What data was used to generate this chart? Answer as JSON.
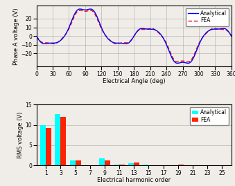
{
  "top": {
    "ylabel": "Phase A voltage (V)",
    "xlabel": "Electrical Angle (deg)",
    "ylim": [
      -35,
      35
    ],
    "xlim": [
      0,
      360
    ],
    "xticks": [
      0,
      30,
      60,
      90,
      120,
      150,
      180,
      210,
      240,
      270,
      300,
      330,
      360
    ],
    "yticks": [
      -20,
      -10,
      0,
      10,
      20
    ],
    "analytical_color": "#0000ff",
    "fea_color": "#ff0000",
    "legend_labels": [
      "Analytical",
      "FEA"
    ],
    "bg_color": "#f0ede8"
  },
  "bottom": {
    "ylabel": "RMS voltage (V)",
    "xlabel": "Electrical harmonic order",
    "ylim": [
      0,
      15
    ],
    "yticks": [
      0,
      5,
      10,
      15
    ],
    "xticks": [
      1,
      3,
      5,
      7,
      9,
      11,
      13,
      15,
      17,
      19,
      21,
      23,
      25
    ],
    "analytical_color": "#00ffff",
    "fea_color": "#ff2200",
    "legend_labels": [
      "Analytical",
      "FEA"
    ],
    "bg_color": "#f0ede8",
    "analytical_values": {
      "1": 10.0,
      "3": 12.6,
      "5": 1.2,
      "7": 0.0,
      "9": 1.75,
      "11": 0.25,
      "13": 0.55,
      "15": 0.2,
      "17": 0.1,
      "19": 0.05,
      "21": 0.05,
      "23": 0.02,
      "25": 0.02
    },
    "fea_values": {
      "1": 9.2,
      "3": 12.0,
      "5": 1.25,
      "7": 0.0,
      "9": 1.2,
      "11": 0.32,
      "13": 0.82,
      "15": 0.12,
      "17": 0.1,
      "19": 0.3,
      "21": 0.02,
      "23": 0.02,
      "25": 0.02
    }
  }
}
